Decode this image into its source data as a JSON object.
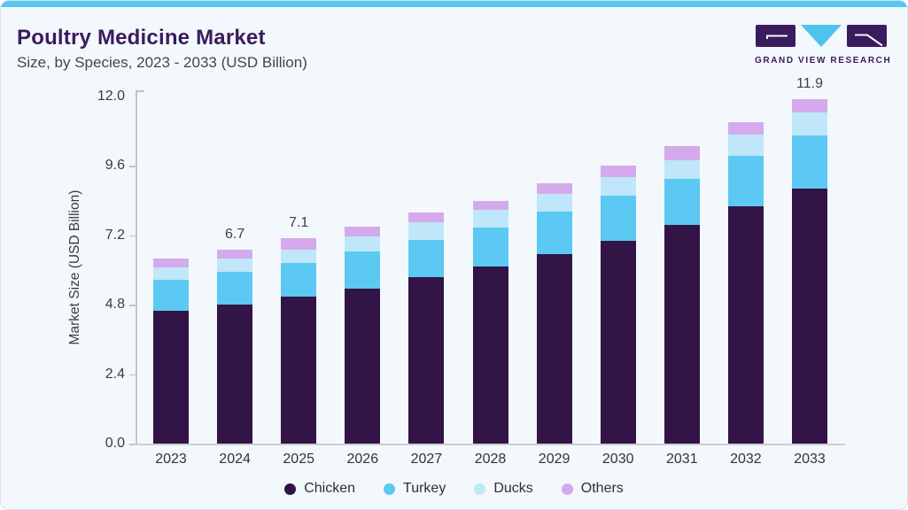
{
  "header": {
    "title": "Poultry Medicine Market",
    "subtitle": "Size, by Species, 2023 - 2033 (USD Billion)"
  },
  "logo": {
    "text": "GRAND VIEW RESEARCH",
    "block_color": "#3a1b5e",
    "triangle_color": "#4ec3ee"
  },
  "colors": {
    "card_background": "#f3f8fc",
    "top_strip": "#57c7f1",
    "axis": "#bcc5cf",
    "title_purple": "#3a1b5e"
  },
  "chart_data": {
    "type": "bar",
    "stacked": true,
    "title": "Poultry Medicine Market",
    "subtitle": "Size, by Species, 2023 - 2033 (USD Billion)",
    "xlabel": "",
    "ylabel": "Market Size (USD Billion)",
    "ylim": [
      0,
      12
    ],
    "yticks": [
      0,
      2.4,
      4.8,
      7.2,
      9.6,
      12
    ],
    "ytick_labels": [
      "0.0",
      "2.4",
      "4.8",
      "7.2",
      "9.6",
      "12.0"
    ],
    "grid": false,
    "legend_position": "bottom",
    "categories": [
      "2023",
      "2024",
      "2025",
      "2026",
      "2027",
      "2028",
      "2029",
      "2030",
      "2031",
      "2032",
      "2033"
    ],
    "series": [
      {
        "name": "Chicken",
        "color": "#321447",
        "values": [
          4.6,
          4.8,
          5.07,
          5.36,
          5.75,
          6.13,
          6.54,
          7.01,
          7.56,
          8.19,
          8.82
        ]
      },
      {
        "name": "Turkey",
        "color": "#5bc9f3",
        "values": [
          1.07,
          1.13,
          1.17,
          1.29,
          1.29,
          1.33,
          1.47,
          1.55,
          1.6,
          1.77,
          1.84
        ]
      },
      {
        "name": "Ducks",
        "color": "#bfe7f9",
        "values": [
          0.42,
          0.46,
          0.47,
          0.5,
          0.62,
          0.61,
          0.62,
          0.66,
          0.64,
          0.71,
          0.78
        ]
      },
      {
        "name": "Others",
        "color": "#d4aaec",
        "values": [
          0.31,
          0.31,
          0.39,
          0.35,
          0.34,
          0.33,
          0.37,
          0.38,
          0.5,
          0.43,
          0.46
        ]
      }
    ],
    "totals": [
      6.4,
      6.7,
      7.1,
      7.5,
      8.0,
      8.4,
      9.0,
      9.6,
      10.3,
      11.1,
      11.9
    ],
    "bar_labels": [
      "",
      "6.7",
      "7.1",
      "",
      "",
      "",
      "",
      "",
      "",
      "",
      "11.9"
    ]
  }
}
